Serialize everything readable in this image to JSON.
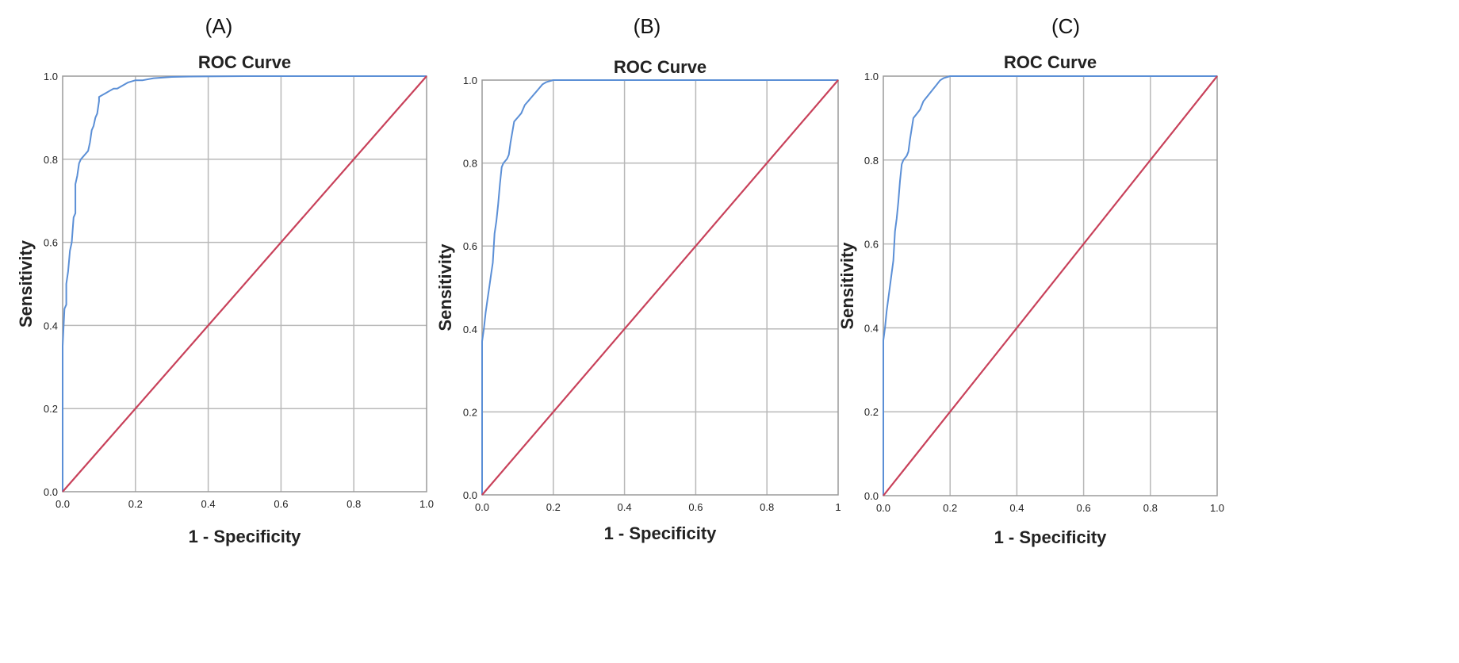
{
  "chart_data": [
    {
      "panel_label": "(A)",
      "type": "line",
      "title": "ROC Curve",
      "xlabel": "1 - Specificity",
      "ylabel": "Sensitivity",
      "xlim": [
        0,
        1
      ],
      "ylim": [
        0,
        1
      ],
      "x_ticks": [
        "0.0",
        "0.2",
        "0.4",
        "0.6",
        "0.8",
        "1.0"
      ],
      "y_ticks": [
        "0.0",
        "0.2",
        "0.4",
        "0.6",
        "0.8",
        "1.0"
      ],
      "grid": true,
      "series": [
        {
          "color": "#5b8fd6",
          "x": [
            0.0,
            0.0,
            0.005,
            0.01,
            0.01,
            0.015,
            0.02,
            0.025,
            0.03,
            0.035,
            0.035,
            0.04,
            0.045,
            0.05,
            0.06,
            0.07,
            0.075,
            0.08,
            0.085,
            0.09,
            0.095,
            0.1,
            0.1,
            0.12,
            0.13,
            0.14,
            0.15,
            0.16,
            0.17,
            0.18,
            0.2,
            0.22,
            0.25,
            0.3,
            0.35,
            0.5,
            0.7,
            0.9,
            1.0
          ],
          "y": [
            0.0,
            0.35,
            0.44,
            0.45,
            0.5,
            0.53,
            0.58,
            0.6,
            0.66,
            0.67,
            0.74,
            0.76,
            0.79,
            0.8,
            0.81,
            0.82,
            0.84,
            0.87,
            0.88,
            0.9,
            0.91,
            0.94,
            0.95,
            0.96,
            0.965,
            0.97,
            0.97,
            0.975,
            0.98,
            0.985,
            0.99,
            0.99,
            0.995,
            0.998,
            0.999,
            1.0,
            1.0,
            1.0,
            1.0
          ]
        },
        {
          "color": "#c8415a",
          "x": [
            0,
            1
          ],
          "y": [
            0,
            1
          ]
        }
      ]
    },
    {
      "panel_label": "(B)",
      "type": "line",
      "title": "ROC Curve",
      "xlabel": "1 - Specificity",
      "ylabel": "Sensitivity",
      "xlim": [
        0,
        1
      ],
      "ylim": [
        0,
        1
      ],
      "x_ticks": [
        "0.0",
        "0.2",
        "0.4",
        "0.6",
        "0.8",
        "1"
      ],
      "y_ticks": [
        "0.0",
        "0.2",
        "0.4",
        "0.6",
        "0.8",
        "1.0"
      ],
      "grid": true,
      "series": [
        {
          "color": "#5b8fd6",
          "x": [
            0.0,
            0.0,
            0.005,
            0.01,
            0.015,
            0.02,
            0.025,
            0.03,
            0.035,
            0.04,
            0.045,
            0.05,
            0.055,
            0.06,
            0.07,
            0.075,
            0.08,
            0.09,
            0.1,
            0.11,
            0.12,
            0.13,
            0.14,
            0.15,
            0.16,
            0.17,
            0.18,
            0.2,
            0.3,
            0.5,
            0.55,
            0.7,
            1.0
          ],
          "y": [
            0.0,
            0.37,
            0.4,
            0.44,
            0.47,
            0.5,
            0.53,
            0.56,
            0.63,
            0.66,
            0.7,
            0.75,
            0.79,
            0.8,
            0.81,
            0.82,
            0.85,
            0.9,
            0.91,
            0.92,
            0.94,
            0.95,
            0.96,
            0.97,
            0.98,
            0.99,
            0.995,
            1.0,
            1.0,
            1.0,
            1.0,
            1.0,
            1.0
          ]
        },
        {
          "color": "#c8415a",
          "x": [
            0,
            1
          ],
          "y": [
            0,
            1
          ]
        }
      ]
    },
    {
      "panel_label": "(C)",
      "type": "line",
      "title": "ROC Curve",
      "xlabel": "1 - Specificity",
      "ylabel": "Sensitivity",
      "xlim": [
        0,
        1
      ],
      "ylim": [
        0,
        1
      ],
      "x_ticks": [
        "0.0",
        "0.2",
        "0.4",
        "0.6",
        "0.8",
        "1.0"
      ],
      "y_ticks": [
        "0.0",
        "0.2",
        "0.4",
        "0.6",
        "0.8",
        "1.0"
      ],
      "grid": true,
      "series": [
        {
          "color": "#5b8fd6",
          "x": [
            0.0,
            0.0,
            0.005,
            0.01,
            0.015,
            0.02,
            0.025,
            0.03,
            0.035,
            0.04,
            0.045,
            0.05,
            0.055,
            0.06,
            0.07,
            0.075,
            0.08,
            0.09,
            0.1,
            0.11,
            0.12,
            0.13,
            0.14,
            0.15,
            0.16,
            0.17,
            0.18,
            0.2,
            0.3,
            0.5,
            0.55,
            0.7,
            1.0
          ],
          "y": [
            0.0,
            0.37,
            0.4,
            0.44,
            0.47,
            0.5,
            0.53,
            0.56,
            0.63,
            0.66,
            0.7,
            0.75,
            0.79,
            0.8,
            0.81,
            0.82,
            0.85,
            0.9,
            0.91,
            0.92,
            0.94,
            0.95,
            0.96,
            0.97,
            0.98,
            0.99,
            0.995,
            1.0,
            1.0,
            1.0,
            1.0,
            1.0,
            1.0
          ]
        },
        {
          "color": "#c8415a",
          "x": [
            0,
            1
          ],
          "y": [
            0,
            1
          ]
        }
      ]
    }
  ]
}
